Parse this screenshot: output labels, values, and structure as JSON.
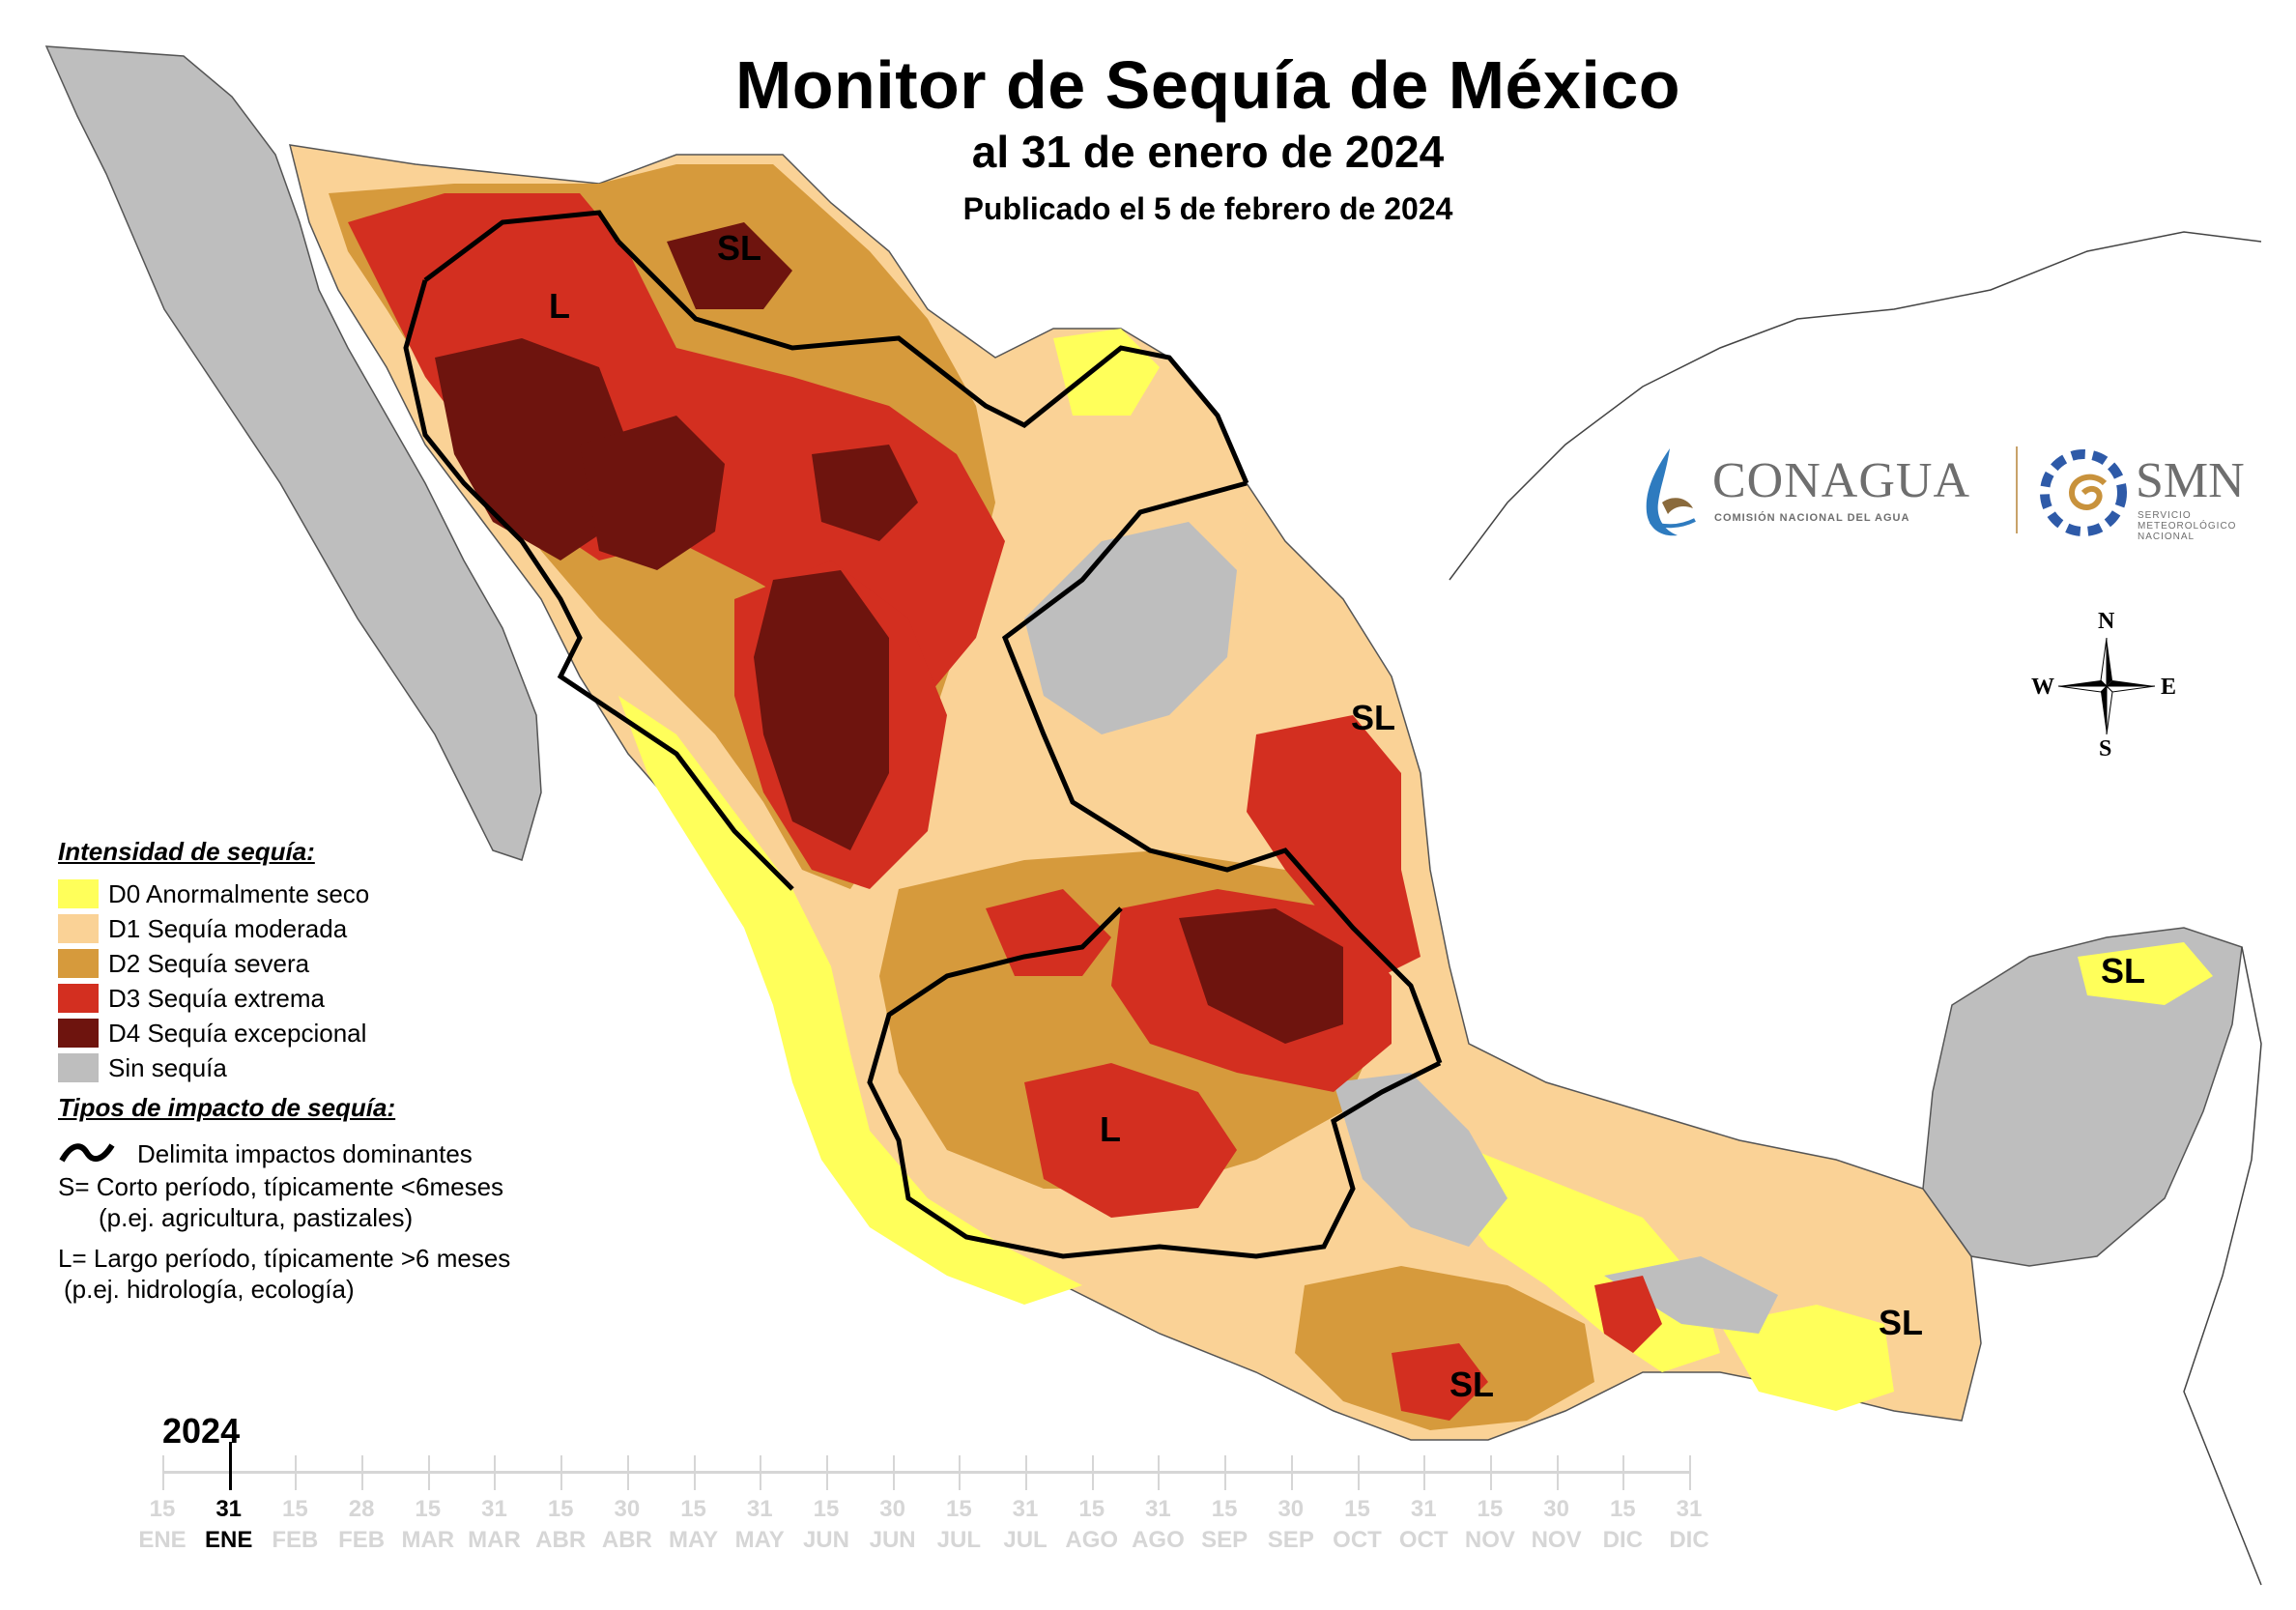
{
  "header": {
    "title": "Monitor de Sequía de México",
    "subtitle": "al 31 de enero de 2024",
    "published": "Publicado el 5 de febrero de 2024"
  },
  "colors": {
    "D0": "#ffff5a",
    "D1": "#fad296",
    "D2": "#d69a3c",
    "D3": "#d32f20",
    "D4": "#6e140e",
    "none": "#bebebe",
    "impact_line": "#000000"
  },
  "map_labels": {
    "north_sl": "SL",
    "northwest_l": "L",
    "northeast_sl": "SL",
    "yucatan_sl": "SL",
    "center_l": "L",
    "south_sl": "SL",
    "southeast_sl": "SL"
  },
  "logos": {
    "conagua": "CONAGUA",
    "conagua_sub": "COMISIÓN NACIONAL DEL AGUA",
    "smn": "SMN",
    "smn_sub": "SERVICIO METEOROLÓGICO NACIONAL"
  },
  "compass": {
    "n": "N",
    "s": "S",
    "e": "E",
    "w": "W"
  },
  "legend": {
    "intensity_title": "Intensidad de sequía:",
    "items": [
      {
        "label": "D0 Anormalmente seco",
        "color": "#ffff5a"
      },
      {
        "label": "D1 Sequía moderada",
        "color": "#fad296"
      },
      {
        "label": "D2 Sequía severa",
        "color": "#d69a3c"
      },
      {
        "label": "D3 Sequía extrema",
        "color": "#d32f20"
      },
      {
        "label": "D4 Sequía excepcional",
        "color": "#6e140e"
      },
      {
        "label": "Sin sequía",
        "color": "#bebebe"
      }
    ],
    "impact_title": "Tipos de impacto de sequía:",
    "impact_line_label": "Delimita impactos dominantes",
    "short_term": "S= Corto período, típicamente <6meses",
    "short_term_ex": "(p.ej. agricultura, pastizales)",
    "long_term": "L= Largo período, típicamente >6 meses",
    "long_term_ex": "(p.ej. hidrología, ecología)"
  },
  "timeline": {
    "year": "2024",
    "ticks": [
      {
        "day": "15",
        "month": "ENE",
        "current": false
      },
      {
        "day": "31",
        "month": "ENE",
        "current": true
      },
      {
        "day": "15",
        "month": "FEB",
        "current": false
      },
      {
        "day": "28",
        "month": "FEB",
        "current": false
      },
      {
        "day": "15",
        "month": "MAR",
        "current": false
      },
      {
        "day": "31",
        "month": "MAR",
        "current": false
      },
      {
        "day": "15",
        "month": "ABR",
        "current": false
      },
      {
        "day": "30",
        "month": "ABR",
        "current": false
      },
      {
        "day": "15",
        "month": "MAY",
        "current": false
      },
      {
        "day": "31",
        "month": "MAY",
        "current": false
      },
      {
        "day": "15",
        "month": "JUN",
        "current": false
      },
      {
        "day": "30",
        "month": "JUN",
        "current": false
      },
      {
        "day": "15",
        "month": "JUL",
        "current": false
      },
      {
        "day": "31",
        "month": "JUL",
        "current": false
      },
      {
        "day": "15",
        "month": "AGO",
        "current": false
      },
      {
        "day": "31",
        "month": "AGO",
        "current": false
      },
      {
        "day": "15",
        "month": "SEP",
        "current": false
      },
      {
        "day": "30",
        "month": "SEP",
        "current": false
      },
      {
        "day": "15",
        "month": "OCT",
        "current": false
      },
      {
        "day": "31",
        "month": "OCT",
        "current": false
      },
      {
        "day": "15",
        "month": "NOV",
        "current": false
      },
      {
        "day": "30",
        "month": "NOV",
        "current": false
      },
      {
        "day": "15",
        "month": "DIC",
        "current": false
      },
      {
        "day": "31",
        "month": "DIC",
        "current": false
      }
    ]
  }
}
